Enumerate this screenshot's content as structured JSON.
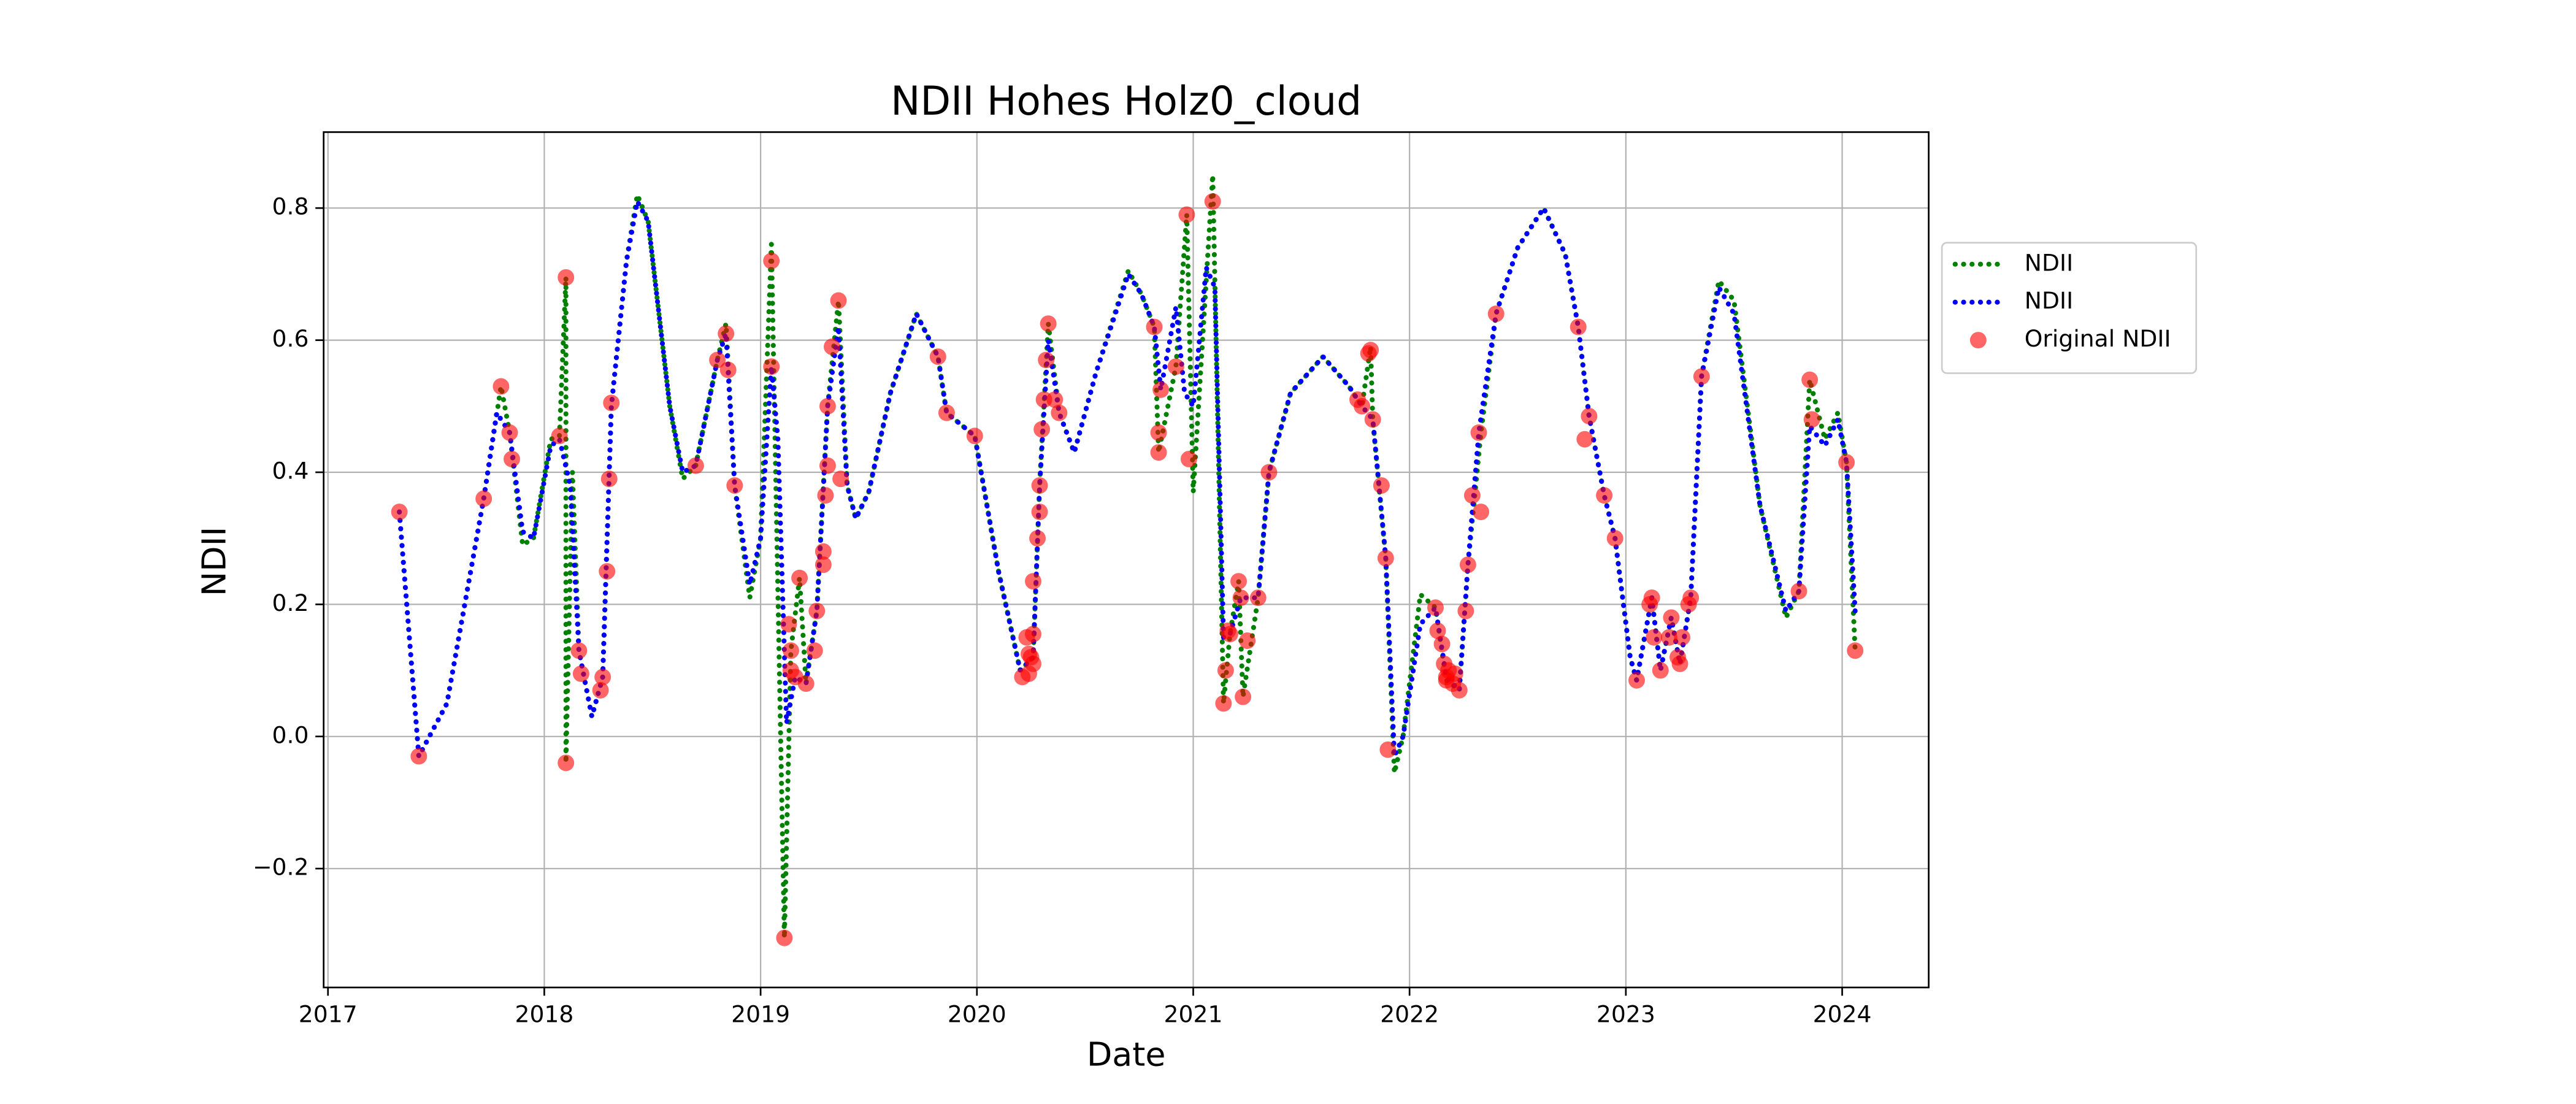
{
  "chart_data": {
    "type": "line",
    "title": "NDII Hohes Holz0_cloud",
    "x_label": "Date",
    "y_label": "NDII",
    "xlim": [
      2016.98,
      2024.4
    ],
    "ylim": [
      -0.38,
      0.915
    ],
    "xticks": [
      2017,
      2018,
      2019,
      2020,
      2021,
      2022,
      2023,
      2024
    ],
    "yticks": [
      {
        "value": -0.2,
        "label": "−0.2"
      },
      {
        "value": 0,
        "label": "0.0"
      },
      0.2,
      0.4,
      0.6,
      0.8
    ],
    "grid": true,
    "legend": "outside-right",
    "series": [
      {
        "name": "NDII",
        "type": "line",
        "color": "#008000",
        "line_style": "dotted",
        "x": [
          2017.33,
          2017.42,
          2017.55,
          2017.72,
          2017.8,
          2017.84,
          2017.9,
          2017.95,
          2018.03,
          2018.07,
          2018.1,
          2018.1,
          2018.13,
          2018.16,
          2018.22,
          2018.27,
          2018.31,
          2018.38,
          2018.43,
          2018.48,
          2018.58,
          2018.64,
          2018.7,
          2018.8,
          2018.84,
          2018.88,
          2018.95,
          2019.0,
          2019.05,
          2019.11,
          2019.14,
          2019.18,
          2019.21,
          2019.26,
          2019.31,
          2019.36,
          2019.4,
          2019.44,
          2019.5,
          2019.6,
          2019.72,
          2019.82,
          2019.86,
          2019.99,
          2020.1,
          2020.2,
          2020.26,
          2020.29,
          2020.33,
          2020.38,
          2020.45,
          2020.55,
          2020.7,
          2020.76,
          2020.82,
          2020.84,
          2020.92,
          2020.97,
          2021.0,
          2021.09,
          2021.14,
          2021.17,
          2021.21,
          2021.23,
          2021.3,
          2021.35,
          2021.45,
          2021.6,
          2021.72,
          2021.78,
          2021.82,
          2021.83,
          2021.89,
          2021.93,
          2021.97,
          2022.05,
          2022.12,
          2022.17,
          2022.23,
          2022.27,
          2022.33,
          2022.4,
          2022.5,
          2022.62,
          2022.72,
          2022.78,
          2022.83,
          2022.9,
          2022.95,
          2023.02,
          2023.05,
          2023.12,
          2023.16,
          2023.21,
          2023.25,
          2023.3,
          2023.35,
          2023.43,
          2023.5,
          2023.62,
          2023.74,
          2023.8,
          2023.85,
          2023.92,
          2023.98,
          2024.02,
          2024.06
        ],
        "values": [
          0.34,
          -0.03,
          0.05,
          0.36,
          0.53,
          0.46,
          0.29,
          0.3,
          0.45,
          0.455,
          0.695,
          -0.04,
          0.4,
          0.13,
          0.03,
          0.09,
          0.5,
          0.72,
          0.82,
          0.78,
          0.5,
          0.39,
          0.41,
          0.57,
          0.625,
          0.38,
          0.21,
          0.3,
          0.745,
          -0.305,
          0.13,
          0.24,
          0.08,
          0.19,
          0.5,
          0.66,
          0.38,
          0.33,
          0.37,
          0.52,
          0.64,
          0.575,
          0.49,
          0.455,
          0.25,
          0.1,
          0.12,
          0.38,
          0.625,
          0.49,
          0.43,
          0.55,
          0.705,
          0.67,
          0.62,
          0.43,
          0.56,
          0.79,
          0.37,
          0.85,
          0.05,
          0.155,
          0.235,
          0.06,
          0.21,
          0.4,
          0.52,
          0.575,
          0.53,
          0.5,
          0.59,
          0.48,
          0.27,
          -0.055,
          0.0,
          0.215,
          0.195,
          0.085,
          0.07,
          0.26,
          0.46,
          0.64,
          0.74,
          0.8,
          0.73,
          0.62,
          0.485,
          0.365,
          0.3,
          0.12,
          0.085,
          0.21,
          0.1,
          0.18,
          0.11,
          0.21,
          0.545,
          0.69,
          0.66,
          0.35,
          0.18,
          0.22,
          0.54,
          0.45,
          0.49,
          0.415,
          0.13
        ]
      },
      {
        "name": "NDII",
        "type": "line",
        "color": "#0000ff",
        "line_style": "dotted",
        "x": [
          2017.33,
          2017.42,
          2017.55,
          2017.72,
          2017.78,
          2017.84,
          2017.9,
          2017.95,
          2018.03,
          2018.07,
          2018.12,
          2018.16,
          2018.22,
          2018.27,
          2018.31,
          2018.38,
          2018.43,
          2018.48,
          2018.58,
          2018.64,
          2018.7,
          2018.8,
          2018.84,
          2018.88,
          2018.95,
          2019.0,
          2019.05,
          2019.08,
          2019.12,
          2019.16,
          2019.21,
          2019.26,
          2019.31,
          2019.36,
          2019.4,
          2019.44,
          2019.5,
          2019.6,
          2019.72,
          2019.82,
          2019.86,
          2019.99,
          2020.1,
          2020.2,
          2020.26,
          2020.29,
          2020.33,
          2020.38,
          2020.45,
          2020.55,
          2020.7,
          2020.76,
          2020.82,
          2020.85,
          2020.92,
          2020.96,
          2021.0,
          2021.06,
          2021.1,
          2021.14,
          2021.17,
          2021.22,
          2021.3,
          2021.35,
          2021.45,
          2021.6,
          2021.72,
          2021.78,
          2021.83,
          2021.89,
          2021.93,
          2021.97,
          2022.05,
          2022.12,
          2022.17,
          2022.23,
          2022.27,
          2022.32,
          2022.4,
          2022.5,
          2022.62,
          2022.72,
          2022.78,
          2022.83,
          2022.9,
          2022.95,
          2023.02,
          2023.05,
          2023.12,
          2023.16,
          2023.21,
          2023.25,
          2023.3,
          2023.35,
          2023.43,
          2023.5,
          2023.62,
          2023.74,
          2023.8,
          2023.85,
          2023.92,
          2023.98,
          2024.02,
          2024.06
        ],
        "values": [
          0.34,
          -0.03,
          0.05,
          0.36,
          0.49,
          0.46,
          0.31,
          0.3,
          0.44,
          0.45,
          0.38,
          0.13,
          0.03,
          0.09,
          0.5,
          0.72,
          0.81,
          0.78,
          0.5,
          0.4,
          0.41,
          0.57,
          0.61,
          0.38,
          0.23,
          0.3,
          0.56,
          0.45,
          0.02,
          0.09,
          0.08,
          0.19,
          0.5,
          0.62,
          0.38,
          0.33,
          0.37,
          0.52,
          0.64,
          0.575,
          0.49,
          0.455,
          0.25,
          0.1,
          0.12,
          0.38,
          0.6,
          0.49,
          0.43,
          0.55,
          0.7,
          0.67,
          0.62,
          0.525,
          0.65,
          0.52,
          0.5,
          0.71,
          0.68,
          0.15,
          0.155,
          0.21,
          0.21,
          0.4,
          0.52,
          0.575,
          0.53,
          0.5,
          0.48,
          0.27,
          -0.03,
          0.0,
          0.17,
          0.195,
          0.09,
          0.07,
          0.26,
          0.46,
          0.64,
          0.74,
          0.8,
          0.73,
          0.62,
          0.485,
          0.365,
          0.3,
          0.12,
          0.085,
          0.21,
          0.1,
          0.18,
          0.11,
          0.21,
          0.545,
          0.68,
          0.64,
          0.35,
          0.19,
          0.22,
          0.47,
          0.44,
          0.48,
          0.415,
          0.19
        ]
      },
      {
        "name": "Original NDII",
        "type": "scatter",
        "color": "#ff0000",
        "x": [
          2017.33,
          2017.42,
          2017.72,
          2017.8,
          2017.84,
          2017.85,
          2018.07,
          2018.1,
          2018.1,
          2018.16,
          2018.17,
          2018.26,
          2018.27,
          2018.29,
          2018.3,
          2018.31,
          2018.7,
          2018.8,
          2018.84,
          2018.85,
          2018.88,
          2019.05,
          2019.05,
          2019.11,
          2019.13,
          2019.14,
          2019.14,
          2019.16,
          2019.18,
          2019.21,
          2019.25,
          2019.26,
          2019.29,
          2019.29,
          2019.3,
          2019.31,
          2019.31,
          2019.33,
          2019.36,
          2019.37,
          2019.82,
          2019.86,
          2019.99,
          2020.21,
          2020.23,
          2020.24,
          2020.24,
          2020.25,
          2020.26,
          2020.26,
          2020.26,
          2020.28,
          2020.29,
          2020.29,
          2020.3,
          2020.31,
          2020.32,
          2020.33,
          2020.36,
          2020.38,
          2020.82,
          2020.84,
          2020.84,
          2020.85,
          2020.92,
          2020.97,
          2020.98,
          2021.09,
          2021.14,
          2021.15,
          2021.16,
          2021.17,
          2021.21,
          2021.22,
          2021.23,
          2021.25,
          2021.3,
          2021.35,
          2021.76,
          2021.78,
          2021.81,
          2021.82,
          2021.83,
          2021.87,
          2021.89,
          2021.9,
          2022.12,
          2022.13,
          2022.15,
          2022.16,
          2022.17,
          2022.17,
          2022.18,
          2022.2,
          2022.21,
          2022.23,
          2022.26,
          2022.27,
          2022.29,
          2022.32,
          2022.33,
          2022.4,
          2022.78,
          2022.81,
          2022.83,
          2022.9,
          2022.95,
          2023.05,
          2023.11,
          2023.12,
          2023.13,
          2023.16,
          2023.2,
          2023.21,
          2023.24,
          2023.25,
          2023.26,
          2023.29,
          2023.3,
          2023.35,
          2023.8,
          2023.85,
          2023.86,
          2024.02,
          2024.06
        ],
        "values": [
          0.34,
          -0.03,
          0.36,
          0.53,
          0.46,
          0.42,
          0.455,
          0.695,
          -0.04,
          0.13,
          0.095,
          0.07,
          0.09,
          0.25,
          0.39,
          0.505,
          0.41,
          0.57,
          0.61,
          0.555,
          0.38,
          0.56,
          0.72,
          -0.305,
          0.17,
          0.13,
          0.1,
          0.09,
          0.24,
          0.08,
          0.13,
          0.19,
          0.26,
          0.28,
          0.365,
          0.41,
          0.5,
          0.59,
          0.66,
          0.39,
          0.575,
          0.49,
          0.455,
          0.09,
          0.15,
          0.095,
          0.125,
          0.12,
          0.11,
          0.155,
          0.235,
          0.3,
          0.34,
          0.38,
          0.465,
          0.51,
          0.57,
          0.625,
          0.51,
          0.49,
          0.62,
          0.43,
          0.46,
          0.525,
          0.56,
          0.79,
          0.42,
          0.81,
          0.05,
          0.1,
          0.16,
          0.155,
          0.235,
          0.21,
          0.06,
          0.145,
          0.21,
          0.4,
          0.51,
          0.5,
          0.58,
          0.585,
          0.48,
          0.38,
          0.27,
          -0.02,
          0.195,
          0.16,
          0.14,
          0.11,
          0.09,
          0.085,
          0.1,
          0.08,
          0.095,
          0.07,
          0.19,
          0.26,
          0.365,
          0.46,
          0.34,
          0.64,
          0.62,
          0.45,
          0.485,
          0.365,
          0.3,
          0.085,
          0.2,
          0.21,
          0.15,
          0.1,
          0.15,
          0.18,
          0.12,
          0.11,
          0.15,
          0.2,
          0.21,
          0.545,
          0.22,
          0.54,
          0.48,
          0.415,
          0.13
        ]
      }
    ]
  }
}
